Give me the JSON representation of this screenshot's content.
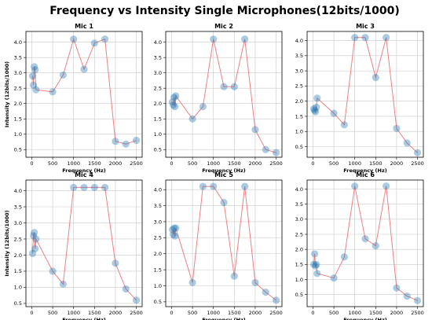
{
  "figure": {
    "title": "Frequency vs Intensity Single Microphones(12bits/1000)"
  },
  "style": {
    "line_color": "#f08080",
    "marker_color": "#1f77b4",
    "grid_color": "#c8c8c8"
  },
  "chart_data": [
    {
      "type": "line",
      "title": "Mic 1",
      "xlabel": "Frequency (Hz)",
      "ylabel": "Intensity (12bits/1000)",
      "xlim": [
        -140,
        2640
      ],
      "ylim": [
        0.25,
        4.35
      ],
      "xticks": [
        0,
        500,
        1000,
        1500,
        2000,
        2500
      ],
      "yticks": [
        0.5,
        1.0,
        1.5,
        2.0,
        2.5,
        3.0,
        3.5,
        4.0
      ],
      "grid": true,
      "x": [
        20,
        40,
        60,
        80,
        100,
        500,
        750,
        1000,
        1250,
        1500,
        1750,
        2000,
        2250,
        2500
      ],
      "y": [
        2.9,
        2.6,
        3.2,
        3.1,
        2.45,
        2.38,
        2.93,
        4.1,
        3.12,
        3.97,
        4.1,
        0.77,
        0.68,
        0.8
      ]
    },
    {
      "type": "line",
      "title": "Mic 2",
      "xlabel": "Frequency (Hz)",
      "ylabel": "",
      "xlim": [
        -140,
        2640
      ],
      "ylim": [
        0.25,
        4.35
      ],
      "xticks": [
        0,
        500,
        1000,
        1500,
        2000,
        2500
      ],
      "yticks": [
        0.5,
        1.0,
        1.5,
        2.0,
        2.5,
        3.0,
        3.5,
        4.0
      ],
      "grid": true,
      "x": [
        20,
        40,
        60,
        80,
        100,
        500,
        750,
        1000,
        1250,
        1500,
        1750,
        2000,
        2250,
        2500
      ],
      "y": [
        2.05,
        1.95,
        2.2,
        1.9,
        2.25,
        1.5,
        1.9,
        4.1,
        2.55,
        2.55,
        4.1,
        1.15,
        0.5,
        0.4
      ]
    },
    {
      "type": "line",
      "title": "Mic 3",
      "xlabel": "Frequency (Hz)",
      "ylabel": "",
      "xlim": [
        -140,
        2640
      ],
      "ylim": [
        0.15,
        4.3
      ],
      "xticks": [
        0,
        500,
        1000,
        1500,
        2000,
        2500
      ],
      "yticks": [
        0.5,
        1.0,
        1.5,
        2.0,
        2.5,
        3.0,
        3.5,
        4.0
      ],
      "grid": true,
      "x": [
        20,
        40,
        60,
        80,
        100,
        500,
        750,
        1000,
        1250,
        1500,
        1750,
        2000,
        2250,
        2500
      ],
      "y": [
        1.75,
        1.7,
        1.65,
        1.8,
        2.1,
        1.6,
        1.22,
        4.1,
        4.1,
        2.78,
        4.1,
        1.1,
        0.62,
        0.3
      ]
    },
    {
      "type": "line",
      "title": "Mic 4",
      "xlabel": "Frequency (Hz)",
      "ylabel": "Intensity (12bits/1000)",
      "xlim": [
        -140,
        2640
      ],
      "ylim": [
        0.4,
        4.33
      ],
      "xticks": [
        0,
        500,
        1000,
        1500,
        2000,
        2500
      ],
      "yticks": [
        0.5,
        1.0,
        1.5,
        2.0,
        2.5,
        3.0,
        3.5,
        4.0
      ],
      "grid": true,
      "x": [
        20,
        40,
        60,
        80,
        100,
        500,
        750,
        1000,
        1250,
        1500,
        1750,
        2000,
        2250,
        2500
      ],
      "y": [
        2.05,
        2.6,
        2.7,
        2.2,
        2.5,
        1.5,
        1.1,
        4.1,
        4.1,
        4.1,
        4.1,
        1.75,
        0.95,
        0.6
      ]
    },
    {
      "type": "line",
      "title": "Mic 5",
      "xlabel": "Frequency (Hz)",
      "ylabel": "",
      "xlim": [
        -140,
        2640
      ],
      "ylim": [
        0.35,
        4.3
      ],
      "xticks": [
        0,
        500,
        1000,
        1500,
        2000,
        2500
      ],
      "yticks": [
        0.5,
        1.0,
        1.5,
        2.0,
        2.5,
        3.0,
        3.5,
        4.0
      ],
      "grid": true,
      "x": [
        20,
        40,
        60,
        80,
        100,
        500,
        750,
        1000,
        1250,
        1500,
        1750,
        2000,
        2250,
        2500
      ],
      "y": [
        2.75,
        2.6,
        2.8,
        2.55,
        2.8,
        1.1,
        4.1,
        4.1,
        3.6,
        1.3,
        4.1,
        1.1,
        0.8,
        0.55
      ]
    },
    {
      "type": "line",
      "title": "Mic 6",
      "xlabel": "Frequency (Hz)",
      "ylabel": "",
      "xlim": [
        -140,
        2640
      ],
      "ylim": [
        0.1,
        4.3
      ],
      "xticks": [
        0,
        500,
        1000,
        1500,
        2000,
        2500
      ],
      "yticks": [
        0.5,
        1.0,
        1.5,
        2.0,
        2.5,
        3.0,
        3.5,
        4.0
      ],
      "grid": true,
      "x": [
        20,
        40,
        60,
        80,
        100,
        500,
        750,
        1000,
        1250,
        1500,
        1750,
        2000,
        2250,
        2500
      ],
      "y": [
        1.5,
        1.85,
        1.45,
        1.5,
        1.2,
        1.05,
        1.75,
        4.1,
        2.35,
        2.12,
        4.1,
        0.72,
        0.45,
        0.3
      ]
    }
  ]
}
